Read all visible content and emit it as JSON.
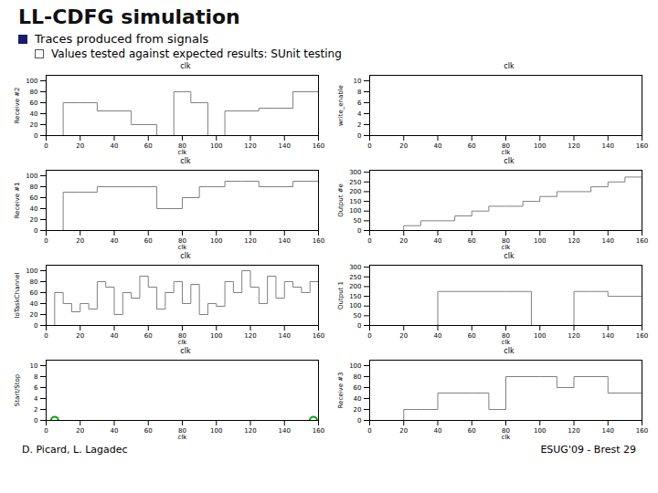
{
  "title": "LL-CDFG simulation",
  "subtitle": [
    "Traces produced from signals",
    "Values tested against expected results: SUnit testing"
  ],
  "annotations": [
    "D. Picard, L. Lagadec",
    "ESUG'09 - Brest 29"
  ],
  "chart_data": [
    {
      "type": "line",
      "title": "clk",
      "xlabel": "clk",
      "ylabel": "Receive #2",
      "xlim": [
        0,
        160
      ],
      "xticks": [
        0,
        20,
        40,
        60,
        80,
        100,
        120,
        140,
        160
      ],
      "ylim": [
        0,
        110
      ],
      "yticks": [
        0,
        20,
        40,
        60,
        80,
        100
      ],
      "series": [
        {
          "type": "line",
          "line_style": "step",
          "color": "#808080",
          "x": [
            0,
            10,
            20,
            30,
            40,
            50,
            55,
            65,
            75,
            80,
            85,
            90,
            95,
            100,
            105,
            120,
            125,
            135,
            145,
            160
          ],
          "values": [
            0,
            60,
            60,
            45,
            45,
            20,
            20,
            0,
            80,
            80,
            60,
            60,
            0,
            0,
            45,
            45,
            50,
            50,
            80,
            80
          ]
        }
      ]
    },
    {
      "type": "line",
      "title": "clk",
      "xlabel": "clk",
      "ylabel": "write_enable",
      "xlim": [
        0,
        160
      ],
      "xticks": [
        0,
        20,
        40,
        60,
        80,
        100,
        120,
        140,
        160
      ],
      "ylim": [
        0,
        11
      ],
      "yticks": [
        0,
        2,
        4,
        6,
        8,
        10
      ],
      "series": [
        {
          "type": "line",
          "line_style": "step",
          "color": "#808080",
          "x": [
            0,
            10,
            20,
            30,
            40,
            50,
            60,
            70,
            80,
            90,
            100,
            110,
            120,
            130,
            140,
            150,
            160
          ],
          "values": [
            0,
            0,
            0,
            0,
            0,
            0,
            0,
            0,
            0,
            0,
            0,
            0,
            0,
            0,
            0,
            0,
            0
          ]
        }
      ]
    },
    {
      "type": "line",
      "title": "clk",
      "xlabel": "clk",
      "ylabel": "Receive #1",
      "xlim": [
        0,
        160
      ],
      "xticks": [
        0,
        20,
        40,
        60,
        80,
        100,
        120,
        140,
        160
      ],
      "ylim": [
        0,
        110
      ],
      "yticks": [
        0,
        20,
        40,
        60,
        80,
        100
      ],
      "series": [
        {
          "type": "line",
          "line_style": "step",
          "color": "#808080",
          "x": [
            0,
            10,
            20,
            30,
            40,
            55,
            65,
            70,
            80,
            90,
            95,
            105,
            115,
            125,
            135,
            145,
            160
          ],
          "values": [
            0,
            70,
            70,
            80,
            80,
            80,
            40,
            40,
            60,
            80,
            80,
            90,
            90,
            80,
            80,
            90,
            90
          ]
        }
      ]
    },
    {
      "type": "line",
      "title": "clk",
      "xlabel": "clk",
      "ylabel": "Output #e",
      "xlim": [
        0,
        160
      ],
      "xticks": [
        0,
        20,
        40,
        60,
        80,
        100,
        120,
        140,
        160
      ],
      "ylim": [
        0,
        310
      ],
      "yticks": [
        0,
        50,
        100,
        150,
        200,
        250,
        300
      ],
      "series": [
        {
          "type": "line",
          "line_style": "step",
          "color": "#808080",
          "x": [
            0,
            10,
            20,
            30,
            40,
            50,
            60,
            70,
            80,
            90,
            100,
            110,
            120,
            130,
            140,
            150,
            160
          ],
          "values": [
            0,
            0,
            25,
            50,
            50,
            75,
            100,
            125,
            125,
            150,
            175,
            200,
            200,
            225,
            250,
            275,
            300
          ]
        }
      ]
    },
    {
      "type": "line",
      "title": "clk",
      "xlabel": "clk",
      "ylabel": "loTaskChannel",
      "xlim": [
        0,
        160
      ],
      "xticks": [
        0,
        20,
        40,
        60,
        80,
        100,
        120,
        140,
        160
      ],
      "ylim": [
        0,
        110
      ],
      "yticks": [
        0,
        20,
        40,
        60,
        80,
        100
      ],
      "series": [
        {
          "type": "line",
          "line_style": "step",
          "color": "#808080",
          "x": [
            0,
            5,
            10,
            15,
            20,
            25,
            30,
            35,
            40,
            45,
            50,
            55,
            60,
            65,
            70,
            75,
            80,
            85,
            90,
            95,
            100,
            105,
            110,
            115,
            120,
            125,
            130,
            135,
            140,
            145,
            150,
            155,
            160
          ],
          "values": [
            0,
            60,
            40,
            25,
            40,
            30,
            80,
            70,
            20,
            60,
            50,
            90,
            70,
            30,
            60,
            80,
            40,
            75,
            20,
            40,
            35,
            80,
            60,
            100,
            70,
            40,
            90,
            50,
            80,
            70,
            60,
            80,
            90
          ]
        }
      ]
    },
    {
      "type": "line",
      "title": "clk",
      "xlabel": "clk",
      "ylabel": "Output 1",
      "xlim": [
        0,
        160
      ],
      "xticks": [
        0,
        20,
        40,
        60,
        80,
        100,
        120,
        140,
        160
      ],
      "ylim": [
        0,
        310
      ],
      "yticks": [
        0,
        50,
        100,
        150,
        200,
        250,
        300
      ],
      "series": [
        {
          "type": "line",
          "line_style": "step",
          "color": "#808080",
          "x": [
            0,
            30,
            40,
            80,
            90,
            95,
            110,
            120,
            130,
            140,
            160
          ],
          "values": [
            0,
            0,
            175,
            175,
            175,
            0,
            0,
            175,
            175,
            150,
            150
          ]
        }
      ]
    },
    {
      "type": "line",
      "title": "clk",
      "xlabel": "clk",
      "ylabel": "Start/Stop",
      "xlim": [
        0,
        160
      ],
      "xticks": [
        0,
        20,
        40,
        60,
        80,
        100,
        120,
        140,
        160
      ],
      "ylim": [
        0,
        11
      ],
      "yticks": [
        0,
        2,
        4,
        6,
        8,
        10
      ],
      "series": [
        {
          "type": "line",
          "line_style": "step",
          "color": "#808080",
          "x": [
            0,
            160
          ],
          "values": [
            0,
            0
          ]
        },
        {
          "type": "scatter",
          "marker": "circle",
          "color": "#00aa00",
          "x": [
            5,
            157
          ],
          "values": [
            0,
            0
          ]
        }
      ]
    },
    {
      "type": "line",
      "title": "clk",
      "xlabel": "clk",
      "ylabel": "Receive #3",
      "xlim": [
        0,
        160
      ],
      "xticks": [
        0,
        20,
        40,
        60,
        80,
        100,
        120,
        140,
        160
      ],
      "ylim": [
        0,
        110
      ],
      "yticks": [
        0,
        20,
        40,
        60,
        80,
        100
      ],
      "series": [
        {
          "type": "line",
          "line_style": "step",
          "color": "#808080",
          "x": [
            0,
            20,
            30,
            40,
            60,
            70,
            80,
            100,
            110,
            120,
            140,
            160
          ],
          "values": [
            0,
            20,
            20,
            50,
            50,
            20,
            80,
            80,
            60,
            80,
            50,
            50
          ]
        }
      ]
    }
  ]
}
